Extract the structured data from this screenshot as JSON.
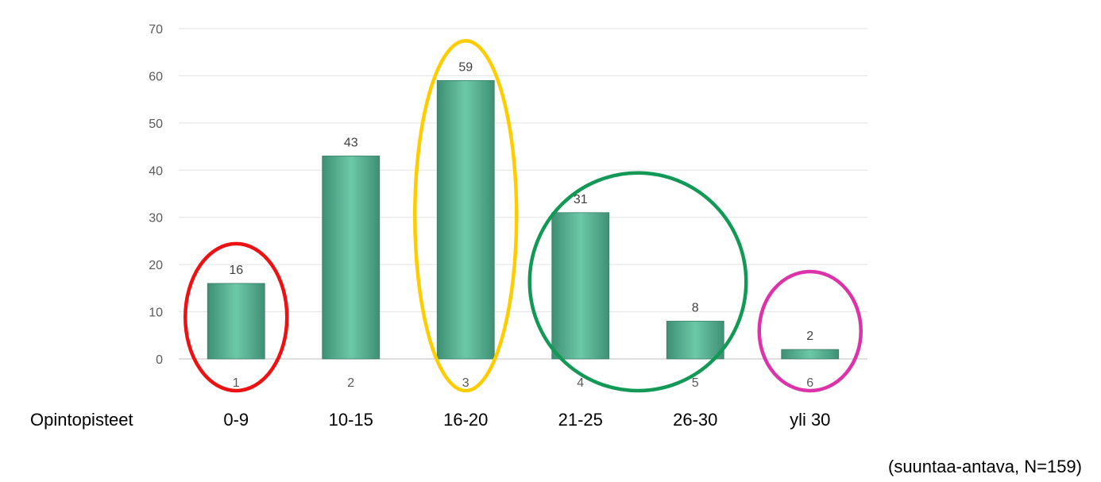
{
  "chart_data": {
    "type": "bar",
    "categories": [
      "1",
      "2",
      "3",
      "4",
      "5",
      "6"
    ],
    "values": [
      16,
      43,
      59,
      31,
      8,
      2
    ],
    "ylim": [
      0,
      70
    ],
    "yticks": [
      0,
      10,
      20,
      30,
      40,
      50,
      60,
      70
    ],
    "grid": true,
    "legend": "none",
    "bar_color": "#5bb89a",
    "row_label": "Opintopisteet",
    "ranges": [
      "0-9",
      "10-15",
      "16-20",
      "21-25",
      "26-30",
      "yli 30"
    ],
    "note": "(suuntaa-antava, N=159)",
    "highlights": [
      {
        "color": "#ee1111",
        "covers": [
          "1"
        ]
      },
      {
        "color": "#ffcc00",
        "covers": [
          "3"
        ]
      },
      {
        "color": "#119955",
        "covers": [
          "4",
          "5"
        ]
      },
      {
        "color": "#dd33aa",
        "covers": [
          "6"
        ]
      }
    ]
  }
}
